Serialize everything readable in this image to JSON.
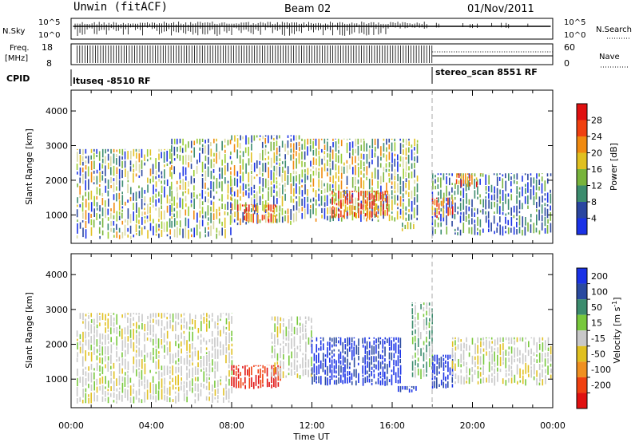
{
  "header": {
    "station": "Unwin (fitACF)",
    "beam": "Beam 02",
    "date": "01/Nov/2011"
  },
  "aux_panels": {
    "nsky": {
      "label": "N.Sky",
      "left_ticks": [
        "10^5",
        "10^0"
      ],
      "right_ticks": [
        "10^5",
        "10^0"
      ],
      "right_label": "N.Search"
    },
    "freq": {
      "label_top": "Freq.",
      "label_unit": "[MHz]",
      "left_ticks": [
        "18",
        "8"
      ],
      "right_ticks": [
        "60",
        "0"
      ],
      "right_label": "Nave"
    },
    "cpid": {
      "label": "CPID",
      "segments": [
        {
          "name": "ltuseq -8510 RF",
          "start_hour": 0,
          "end_hour": 18
        },
        {
          "name": "stereo_scan 8551 RF",
          "start_hour": 18,
          "end_hour": 24
        }
      ]
    }
  },
  "chart_data": [
    {
      "type": "heatmap",
      "panel": "power",
      "x_axis": {
        "label": "Time UT",
        "range_hours": [
          0,
          24
        ]
      },
      "y_axis": {
        "label": "Slant Range [km]",
        "range": [
          180,
          4600
        ],
        "ticks": [
          1000,
          2000,
          3000,
          4000
        ]
      },
      "colorbar": {
        "label": "Power [dB]",
        "ticks": [
          4,
          8,
          12,
          16,
          20,
          24,
          28
        ],
        "colors": [
          "#1a32e6",
          "#2a46a0",
          "#3c8c6e",
          "#78b43c",
          "#e0c020",
          "#f08a10",
          "#f04010",
          "#e01010"
        ]
      },
      "echo_regions": [
        {
          "t0": 0.3,
          "t1": 5.0,
          "r0": 300,
          "r1": 2900,
          "palette": "mixed"
        },
        {
          "t0": 5.0,
          "t1": 8.0,
          "r0": 300,
          "r1": 3200,
          "palette": "mixed"
        },
        {
          "t0": 8.0,
          "t1": 11.5,
          "r0": 700,
          "r1": 3300,
          "palette": "mixed"
        },
        {
          "t0": 8.3,
          "t1": 10.2,
          "r0": 750,
          "r1": 1300,
          "palette": "hot"
        },
        {
          "t0": 11.5,
          "t1": 17.3,
          "r0": 800,
          "r1": 3200,
          "palette": "mixed"
        },
        {
          "t0": 13.0,
          "t1": 15.8,
          "r0": 900,
          "r1": 1700,
          "palette": "hot"
        },
        {
          "t0": 16.5,
          "t1": 17.1,
          "r0": 500,
          "r1": 800,
          "palette": "mid"
        },
        {
          "t0": 18.0,
          "t1": 24.0,
          "r0": 400,
          "r1": 2200,
          "palette": "cool"
        },
        {
          "t0": 18.0,
          "t1": 19.0,
          "r0": 900,
          "r1": 1500,
          "palette": "hot"
        },
        {
          "t0": 19.2,
          "t1": 20.5,
          "r0": 1800,
          "r1": 2200,
          "palette": "hot"
        }
      ]
    },
    {
      "type": "heatmap",
      "panel": "velocity",
      "x_axis": {
        "label": "Time UT",
        "range_hours": [
          0,
          24
        ],
        "ticks": [
          "00:00",
          "04:00",
          "08:00",
          "12:00",
          "16:00",
          "20:00",
          "00:00"
        ]
      },
      "y_axis": {
        "label": "Slant Range [km]",
        "range": [
          180,
          4600
        ],
        "ticks": [
          1000,
          2000,
          3000,
          4000
        ]
      },
      "colorbar": {
        "label": "Velocity [m s-1]",
        "ticks": [
          200,
          100,
          50,
          15,
          -15,
          -50,
          -100,
          -200
        ],
        "colors": [
          "#1a32e6",
          "#2a4aa0",
          "#3c8c6e",
          "#78c83c",
          "#c8c8c8",
          "#e0c020",
          "#f09020",
          "#f04010",
          "#e01010"
        ]
      },
      "echo_regions": [
        {
          "t0": 0.3,
          "t1": 8.0,
          "r0": 300,
          "r1": 2900,
          "palette": "grey"
        },
        {
          "t0": 8.0,
          "t1": 10.5,
          "r0": 700,
          "r1": 1400,
          "palette": "red"
        },
        {
          "t0": 10.0,
          "t1": 12.0,
          "r0": 1000,
          "r1": 2800,
          "palette": "grey"
        },
        {
          "t0": 12.0,
          "t1": 16.5,
          "r0": 800,
          "r1": 2200,
          "palette": "blue"
        },
        {
          "t0": 16.3,
          "t1": 17.2,
          "r0": 600,
          "r1": 800,
          "palette": "blue"
        },
        {
          "t0": 17.0,
          "t1": 18.0,
          "r0": 1000,
          "r1": 3200,
          "palette": "green"
        },
        {
          "t0": 18.0,
          "t1": 19.0,
          "r0": 700,
          "r1": 1700,
          "palette": "blue"
        },
        {
          "t0": 19.0,
          "t1": 24.0,
          "r0": 800,
          "r1": 2200,
          "palette": "grey"
        }
      ]
    }
  ]
}
